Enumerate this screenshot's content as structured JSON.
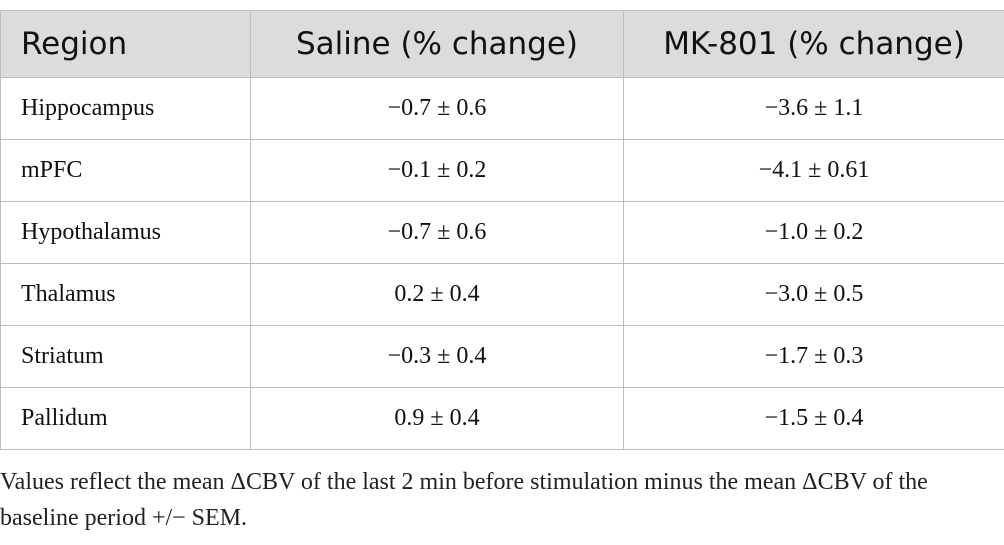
{
  "table": {
    "headers": [
      "Region",
      "Saline (% change)",
      "MK-801 (% change)"
    ],
    "rows": [
      [
        "Hippocampus",
        "−0.7 ± 0.6",
        "−3.6 ± 1.1"
      ],
      [
        "mPFC",
        "−0.1 ± 0.2",
        "−4.1 ± 0.61"
      ],
      [
        "Hypothalamus",
        "−0.7 ± 0.6",
        "−1.0 ± 0.2"
      ],
      [
        "Thalamus",
        "0.2 ± 0.4",
        "−3.0 ± 0.5"
      ],
      [
        "Striatum",
        "−0.3 ± 0.4",
        "−1.7 ± 0.3"
      ],
      [
        "Pallidum",
        "0.9 ± 0.4",
        "−1.5 ± 0.4"
      ]
    ]
  },
  "footnote": "Values reflect the mean ΔCBV of the last 2 min before stimulation minus the mean ΔCBV of the baseline period +/− SEM.",
  "colors": {
    "header_bg": "#dcdcdc",
    "border": "#bdbdbd",
    "text": "#111111"
  }
}
